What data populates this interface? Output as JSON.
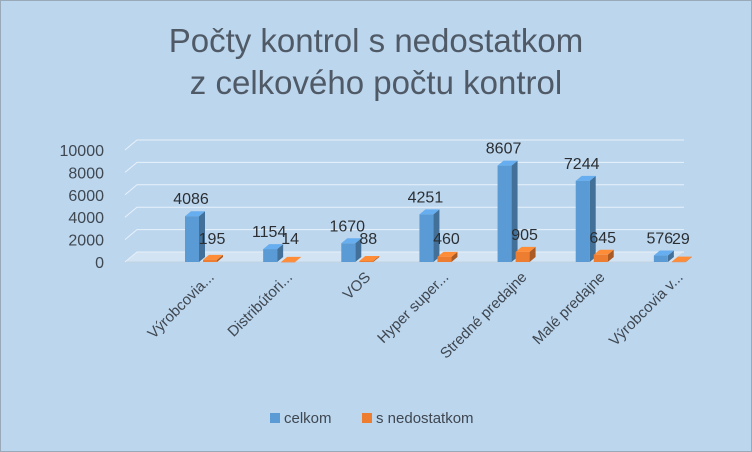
{
  "chart_data": {
    "type": "bar",
    "title_line1": "Počty kontrol s nedostatkom",
    "title_line2": "z celkového počtu kontrol",
    "categories": [
      "Výrobcovia...",
      "Distribútori...",
      "VOS",
      "Hyper super...",
      "Stredné predajne",
      "Malé predajne",
      "Výrobcovia v..."
    ],
    "series": [
      {
        "name": "celkom",
        "color": "#5b9bd5",
        "values": [
          4086,
          1154,
          1670,
          4251,
          8607,
          7244,
          576
        ]
      },
      {
        "name": "s nedostatkom",
        "color": "#ed7d31",
        "values": [
          195,
          14,
          88,
          460,
          905,
          645,
          29
        ]
      }
    ],
    "yticks": [
      "0",
      "2000",
      "4000",
      "6000",
      "8000",
      "10000"
    ],
    "ylim": [
      0,
      10000
    ],
    "legend_position": "bottom",
    "grid": true,
    "style": "3d-column"
  }
}
